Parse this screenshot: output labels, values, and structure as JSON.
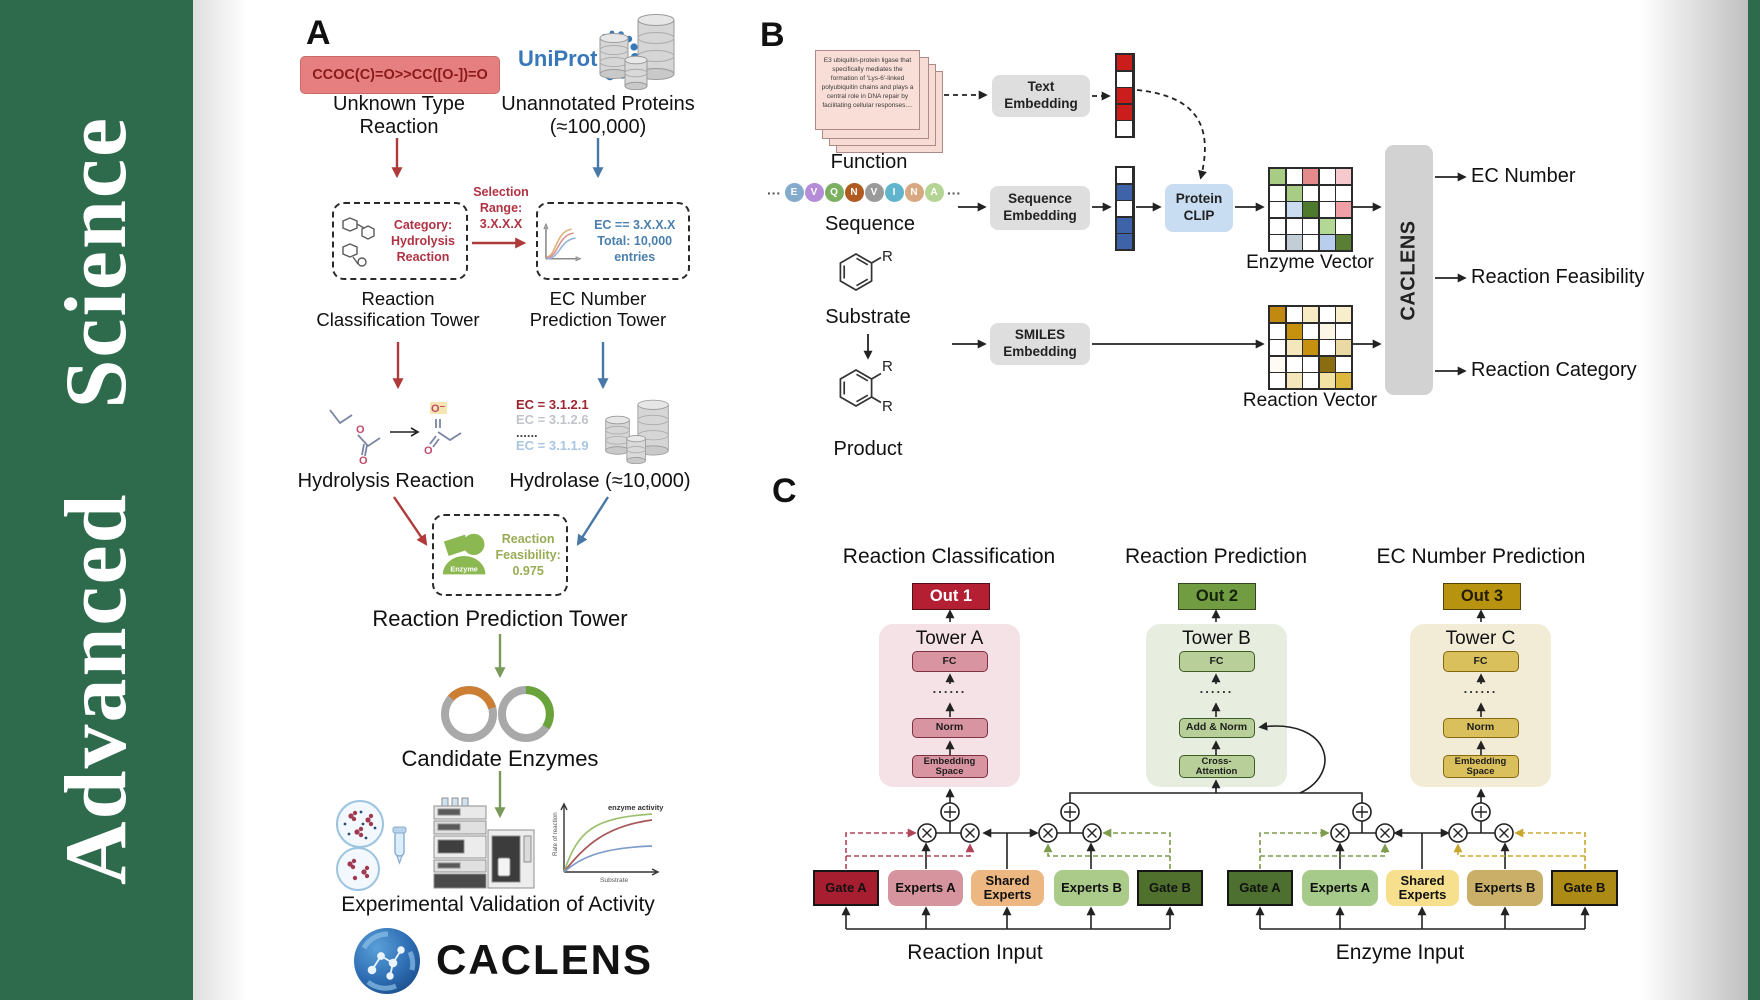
{
  "journal": {
    "name": "Advanced Science"
  },
  "panel_a": {
    "label": "A",
    "smiles": "CCOC(C)=O>>CC([O-])=O",
    "unknown_reaction": "Unknown Type Reaction",
    "uniprot": "UniProt",
    "unannotated_proteins": "Unannotated Proteins (≈100,000)",
    "category_note": "Category: Hydrolysis Reaction",
    "selection_note": "Selection Range: 3.X.X.X",
    "ec_filter": [
      "EC == 3.X.X.X",
      "Total: 10,000",
      "entries"
    ],
    "classification_tower": "Reaction Classification Tower",
    "ec_tower": "EC Number Prediction Tower",
    "hydrolysis_label": "Hydrolysis Reaction",
    "ec_results": [
      {
        "text": "EC = 3.1.2.1",
        "color": "#9e2430"
      },
      {
        "text": "EC = 3.1.2.6",
        "color": "#c0c4ca"
      },
      {
        "text": "......",
        "color": "#4a4a4a"
      },
      {
        "text": "EC = 3.1.1.9",
        "color": "#a9c6e4"
      }
    ],
    "hydrolase_label": "Hydrolase (≈10,000)",
    "enzyme_badge": "Enzyme",
    "feasibility_note": "Reaction Feasibility: 0.975",
    "prediction_tower": "Reaction Prediction Tower",
    "candidates_label": "Candidate Enzymes",
    "validation_label": "Experimental Validation of Activity",
    "brand": "CACLENS",
    "atoms": {
      "oxygen": "O",
      "oxylate": "O⁻"
    },
    "activity_plot": {
      "annotation": "enzyme activity",
      "ylabel": "Rate of reaction",
      "xlabel": "Substrate"
    }
  },
  "panel_b": {
    "label": "B",
    "function_card": "E3 ubiquitin-protein ligase that specifically mediates the formation of 'Lys-6'-linked polyubiquitin chains and plays a central role in DNA repair by facilitating cellular responses....",
    "function_label": "Function",
    "sequence_label": "Sequence",
    "sequence_dots": "···",
    "residues": [
      {
        "letter": "E",
        "color": "#84aacc"
      },
      {
        "letter": "V",
        "color": "#b48cd8"
      },
      {
        "letter": "Q",
        "color": "#7ab060"
      },
      {
        "letter": "N",
        "color": "#b05a20"
      },
      {
        "letter": "V",
        "color": "#9a9a9a"
      },
      {
        "letter": "I",
        "color": "#60b4cc"
      },
      {
        "letter": "N",
        "color": "#d8a880"
      },
      {
        "letter": "A",
        "color": "#b4d494"
      }
    ],
    "substrate_label": "Substrate",
    "product_label": "Product",
    "r_group": "R",
    "text_embedding": "Text Embedding",
    "sequence_embedding": "Sequence Embedding",
    "smiles_embedding": "SMILES Embedding",
    "protein_clip": "Protein CLIP",
    "enzyme_vector_label": "Enzyme Vector",
    "reaction_vector_label": "Reaction Vector",
    "caclens": "CACLENS",
    "outputs": [
      "EC Number",
      "Reaction Feasibility",
      "Reaction Category"
    ],
    "text_vector": [
      "#cc1d1d",
      "#ffffff",
      "#cc1d1d",
      "#cc1d1d",
      "#ffffff"
    ],
    "seq_vector": [
      "#ffffff",
      "#3f63a8",
      "#ffffff",
      "#3f63a8",
      "#3f63a8"
    ],
    "enzyme_matrix": [
      [
        "#a9cc85",
        "#ffffff",
        "#e58b8b",
        "#ffffff",
        "#f6c9cf"
      ],
      [
        "#ffffff",
        "#a9cc85",
        "#ffffff",
        "#ffffff",
        "#ffffff"
      ],
      [
        "#ffffff",
        "#ccdcf0",
        "#4e7a2e",
        "#ffffff",
        "#ef9fa6"
      ],
      [
        "#ffffff",
        "#ffffff",
        "#ffffff",
        "#b3d795",
        "#ffffff"
      ],
      [
        "#ffffff",
        "#c3cdd8",
        "#ffffff",
        "#b9cdec",
        "#5a7e33"
      ]
    ],
    "reaction_matrix": [
      [
        "#c1890f",
        "#ffffff",
        "#f7ecc3",
        "#ffffff",
        "#f8eecb"
      ],
      [
        "#ffffff",
        "#c79110",
        "#ffffff",
        "#fbf6e6",
        "#ffffff"
      ],
      [
        "#ffffff",
        "#f3e7bb",
        "#c79110",
        "#ffffff",
        "#ead9a2"
      ],
      [
        "#fdfbf4",
        "#ffffff",
        "#ffffff",
        "#8a6d10",
        "#ffffff"
      ],
      [
        "#ffffff",
        "#f3e7bb",
        "#ffffff",
        "#f2e3a4",
        "#dcb93e"
      ]
    ]
  },
  "panel_c": {
    "label": "C",
    "headers": [
      "Reaction Classification",
      "Reaction Prediction",
      "EC Number Prediction"
    ],
    "towers": [
      {
        "out": "Out 1",
        "name": "Tower A",
        "layers": [
          "FC",
          "......",
          "Norm",
          "Embedding Space"
        ],
        "bg": "#f5e2e6",
        "box_bg": "#d994a2",
        "box_border": "#7e3140",
        "out_bg": "#b51f33",
        "out_color": "#ffffff"
      },
      {
        "out": "Out 2",
        "name": "Tower B",
        "layers": [
          "FC",
          "......",
          "Add & Norm",
          "Cross- Attention"
        ],
        "bg": "#e7eddf",
        "box_bg": "#b8cf99",
        "box_border": "#3f5c26",
        "out_bg": "#719c42",
        "out_color": "#14230a"
      },
      {
        "out": "Out 3",
        "name": "Tower C",
        "layers": [
          "FC",
          "......",
          "Norm",
          "Embedding Space"
        ],
        "bg": "#f2ecd6",
        "box_bg": "#d9c05c",
        "box_border": "#86690e",
        "out_bg": "#b8930f",
        "out_color": "#241d04"
      }
    ],
    "moe": [
      {
        "input": "Reaction Input",
        "boxes": [
          {
            "label": "Gate A",
            "bg": "#a81e31"
          },
          {
            "label": "Experts A",
            "bg": "#d6959e"
          },
          {
            "label": "Shared Experts",
            "bg": "#ecb780"
          },
          {
            "label": "Experts B",
            "bg": "#abcb8b"
          },
          {
            "label": "Gate B",
            "bg": "#50702e"
          }
        ]
      },
      {
        "input": "Enzyme Input",
        "boxes": [
          {
            "label": "Gate A",
            "bg": "#4d7030"
          },
          {
            "label": "Experts A",
            "bg": "#a6ca8a"
          },
          {
            "label": "Shared Experts",
            "bg": "#f6df8d"
          },
          {
            "label": "Experts B",
            "bg": "#c9af67"
          },
          {
            "label": "Gate B",
            "bg": "#ab8a16"
          }
        ]
      }
    ]
  }
}
